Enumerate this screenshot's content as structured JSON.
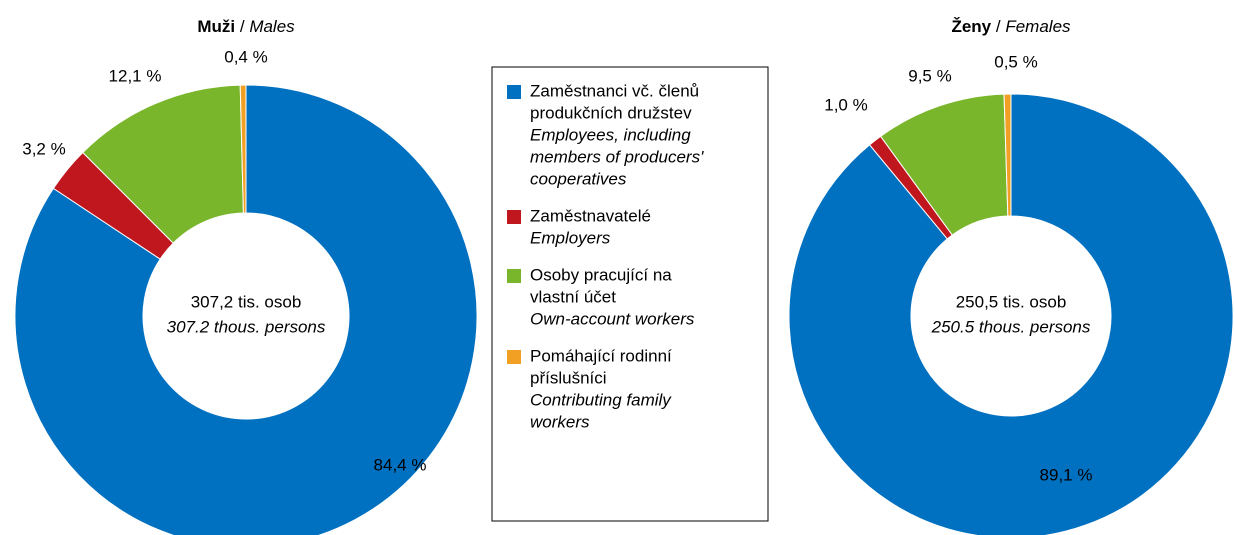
{
  "chart_data": [
    {
      "type": "pie",
      "title": [
        "Muži",
        "/",
        "Males"
      ],
      "center_text": [
        "307,2 tis. osob",
        "307.2 thous. persons"
      ],
      "values": [
        84.4,
        3.2,
        12.1,
        0.4
      ],
      "value_labels": [
        "84,4 %",
        "3,2 %",
        "12,1 %",
        "0,4 %"
      ],
      "colors": [
        "#0070c0",
        "#c0161e",
        "#7ab62c",
        "#f2a023"
      ]
    },
    {
      "type": "pie",
      "title": [
        "Ženy",
        "/",
        "Females"
      ],
      "center_text": [
        "250,5 tis. osob",
        "250.5 thous. persons"
      ],
      "values": [
        89.1,
        1.0,
        9.5,
        0.5
      ],
      "value_labels": [
        "89,1 %",
        "1,0 %",
        "9,5 %",
        "0,5 %"
      ],
      "colors": [
        "#0070c0",
        "#c0161e",
        "#7ab62c",
        "#f2a023"
      ]
    }
  ],
  "legend": {
    "items": [
      {
        "cs": [
          "Zaměstnanci vč. členů",
          "produkčních družstev"
        ],
        "en": [
          "Employees, including",
          "members of producers'",
          "cooperatives"
        ]
      },
      {
        "cs": [
          "Zaměstnavatelé"
        ],
        "en": [
          "Employers"
        ]
      },
      {
        "cs": [
          "Osoby pracující na",
          "vlastní účet"
        ],
        "en": [
          "Own-account workers"
        ]
      },
      {
        "cs": [
          "Pomáhající rodinní",
          "příslušníci"
        ],
        "en": [
          "Contributing family",
          "workers"
        ]
      }
    ]
  }
}
